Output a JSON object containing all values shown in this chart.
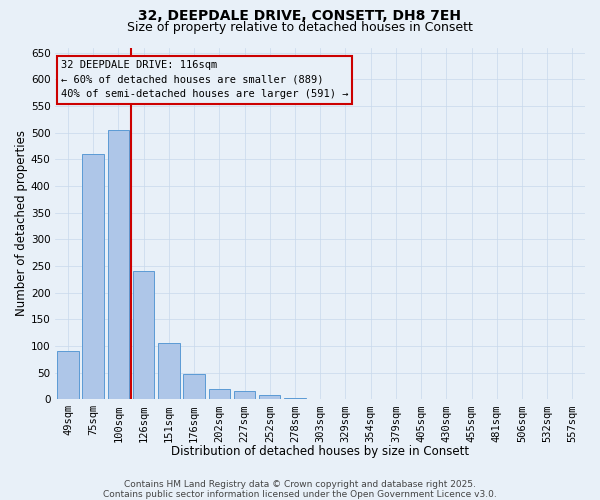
{
  "title1": "32, DEEPDALE DRIVE, CONSETT, DH8 7EH",
  "title2": "Size of property relative to detached houses in Consett",
  "xlabel": "Distribution of detached houses by size in Consett",
  "ylabel": "Number of detached properties",
  "categories": [
    "49sqm",
    "75sqm",
    "100sqm",
    "126sqm",
    "151sqm",
    "176sqm",
    "202sqm",
    "227sqm",
    "252sqm",
    "278sqm",
    "303sqm",
    "329sqm",
    "354sqm",
    "379sqm",
    "405sqm",
    "430sqm",
    "455sqm",
    "481sqm",
    "506sqm",
    "532sqm",
    "557sqm"
  ],
  "values": [
    90,
    460,
    505,
    240,
    105,
    47,
    20,
    15,
    8,
    2,
    0,
    0,
    0,
    0,
    0,
    0,
    0,
    0,
    0,
    0,
    0
  ],
  "bar_color": "#aec6e8",
  "bar_edge_color": "#5b9bd5",
  "vline_color": "#cc0000",
  "vline_pos": 2.5,
  "annotation_text": "32 DEEPDALE DRIVE: 116sqm\n← 60% of detached houses are smaller (889)\n40% of semi-detached houses are larger (591) →",
  "annotation_box_edgecolor": "#cc0000",
  "ylim": [
    0,
    660
  ],
  "yticks": [
    0,
    50,
    100,
    150,
    200,
    250,
    300,
    350,
    400,
    450,
    500,
    550,
    600,
    650
  ],
  "grid_color": "#c8d8ec",
  "background_color": "#e8f0f8",
  "footer_text": "Contains HM Land Registry data © Crown copyright and database right 2025.\nContains public sector information licensed under the Open Government Licence v3.0.",
  "title_fontsize": 10,
  "subtitle_fontsize": 9,
  "axis_label_fontsize": 8.5,
  "tick_fontsize": 7.5,
  "annotation_fontsize": 7.5,
  "footer_fontsize": 6.5
}
